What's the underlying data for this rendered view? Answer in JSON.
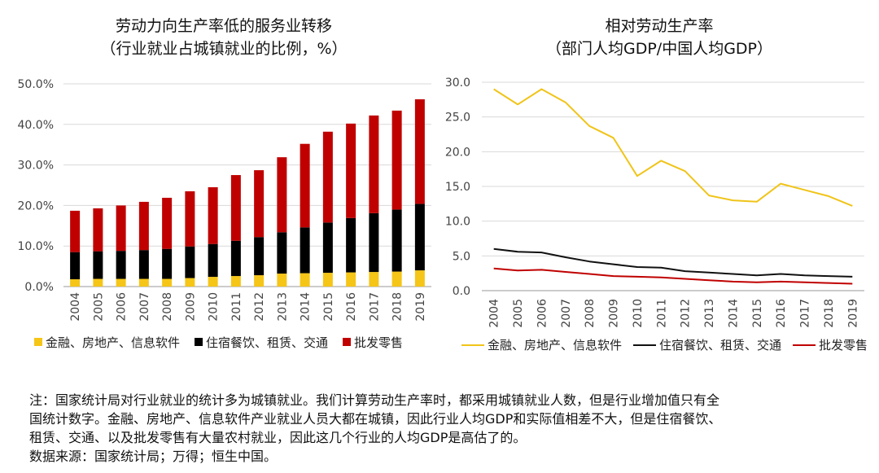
{
  "chart_data": [
    {
      "type": "bar",
      "stacked": true,
      "title": "劳动力向生产率低的服务业转移",
      "subtitle": "（行业就业占城镇就业的比例，%）",
      "categories": [
        "2004",
        "2005",
        "2006",
        "2007",
        "2008",
        "2009",
        "2010",
        "2011",
        "2012",
        "2013",
        "2014",
        "2015",
        "2016",
        "2017",
        "2018",
        "2019"
      ],
      "y_tick_labels": [
        "0.0%",
        "10.0%",
        "20.0%",
        "30.0%",
        "40.0%",
        "50.0%"
      ],
      "ylim": [
        0,
        50
      ],
      "grid": true,
      "legend_position": "bottom",
      "series": [
        {
          "name": "金融、房地产、信息软件",
          "color": "#F5C518",
          "values": [
            1.8,
            1.9,
            1.9,
            1.9,
            1.9,
            2.1,
            2.4,
            2.6,
            2.8,
            3.2,
            3.3,
            3.4,
            3.5,
            3.6,
            3.7,
            4.0
          ]
        },
        {
          "name": "住宿餐饮、租赁、交通",
          "color": "#000000",
          "values": [
            6.7,
            6.8,
            6.9,
            7.1,
            7.4,
            7.8,
            8.1,
            8.7,
            9.4,
            10.2,
            11.3,
            12.4,
            13.4,
            14.5,
            15.3,
            16.4
          ]
        },
        {
          "name": "批发零售",
          "color": "#C00000",
          "values": [
            10.2,
            10.6,
            11.2,
            11.9,
            12.6,
            13.6,
            14.0,
            16.2,
            16.5,
            18.5,
            20.6,
            22.4,
            23.3,
            24.1,
            24.4,
            25.8
          ]
        }
      ]
    },
    {
      "type": "line",
      "title": "相对劳动生产率",
      "subtitle": "（部门人均GDP/中国人均GDP）",
      "categories": [
        "2004",
        "2005",
        "2006",
        "2007",
        "2008",
        "2009",
        "2010",
        "2011",
        "2012",
        "2013",
        "2014",
        "2015",
        "2016",
        "2017",
        "2018",
        "2019"
      ],
      "y_tick_labels": [
        "0.0",
        "5.0",
        "10.0",
        "15.0",
        "20.0",
        "25.0",
        "30.0"
      ],
      "ylim": [
        0,
        30
      ],
      "grid": true,
      "legend_position": "bottom",
      "series": [
        {
          "name": "金融、房地产、信息软件",
          "color": "#F0C419",
          "values": [
            29.0,
            26.8,
            29.0,
            27.1,
            23.7,
            22.0,
            16.5,
            18.7,
            17.2,
            13.7,
            13.0,
            12.8,
            15.4,
            14.5,
            13.6,
            12.2
          ]
        },
        {
          "name": "住宿餐饮、租赁、交通",
          "color": "#111111",
          "values": [
            6.0,
            5.6,
            5.5,
            4.8,
            4.2,
            3.8,
            3.4,
            3.3,
            2.8,
            2.6,
            2.4,
            2.2,
            2.4,
            2.2,
            2.1,
            2.0
          ]
        },
        {
          "name": "批发零售",
          "color": "#C00000",
          "values": [
            3.2,
            2.9,
            3.0,
            2.7,
            2.4,
            2.1,
            2.0,
            1.9,
            1.7,
            1.5,
            1.3,
            1.2,
            1.3,
            1.2,
            1.1,
            1.0
          ]
        }
      ]
    }
  ],
  "notes": {
    "line1": "注：国家统计局对行业就业的统计多为城镇就业。我们计算劳动生产率时，都采用城镇就业人数，但是行业增加值只有全",
    "line2": "国统计数字。金融、房地产、信息软件产业就业人员大都在城镇，因此行业人均GDP和实际值相差不大，但是住宿餐饮、",
    "line3": "租赁、交通、以及批发零售有大量农村就业，因此这几个行业的人均GDP是高估了的。",
    "source": "数据来源：国家统计局；万得；恒生中国。"
  }
}
